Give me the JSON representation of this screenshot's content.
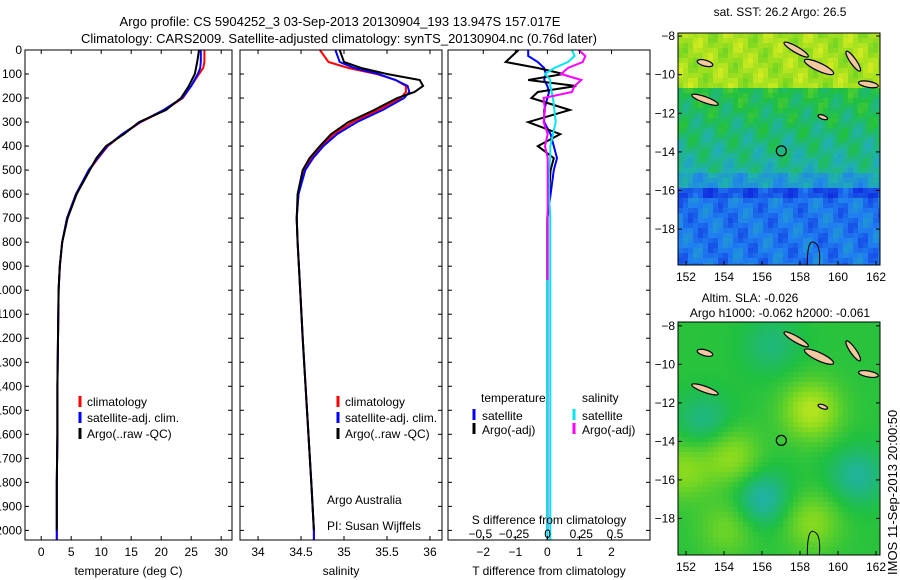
{
  "header": {
    "title_line1": "Argo profile: CS 5904252_3 03-Sep-2013 20130904_193 13.947S 157.017E",
    "title_line2": "Climatology: CARS2009. Satellite-adjusted climatology: synTS_20130904.nc (0.76d later)"
  },
  "side_stamp": "IMOS 11-Sep-2013 20:00:50",
  "credits": {
    "line1": "Argo Australia",
    "line2": "PI: Susan Wijffels"
  },
  "colors": {
    "climatology": "#ff0000",
    "satellite": "#0000ff",
    "argo": "#000000",
    "sal_satellite": "#00e5ee",
    "sal_argo": "#ff00ff",
    "land": "#f2c8a0"
  },
  "chart_data": [
    {
      "type": "line",
      "id": "temperature",
      "xlabel": "temperature (deg C)",
      "ylabel": "",
      "xlim": [
        -2.7,
        31.8
      ],
      "ylim": [
        0,
        2040
      ],
      "xticks": [
        0,
        5,
        10,
        15,
        20,
        25,
        30
      ],
      "yticks": [
        0,
        100,
        200,
        300,
        400,
        500,
        600,
        700,
        800,
        900,
        1000,
        1100,
        1200,
        1300,
        1400,
        1500,
        1600,
        1700,
        1800,
        1900,
        2000
      ],
      "depth": [
        0,
        50,
        75,
        100,
        150,
        200,
        250,
        300,
        350,
        400,
        450,
        500,
        600,
        700,
        800,
        900,
        1000,
        1200,
        1400,
        1600,
        1800,
        2000,
        2040
      ],
      "legend": [
        "climatology",
        "satellite-adj. clim.",
        "Argo(..raw -QC)"
      ],
      "series": [
        {
          "name": "climatology",
          "color": "#ff0000",
          "values": [
            27.2,
            27.2,
            27,
            26.3,
            25,
            23.6,
            20.6,
            16.6,
            13.6,
            11.1,
            9.5,
            8,
            5.8,
            4.3,
            3.5,
            3.1,
            2.9,
            2.8,
            2.7,
            2.7,
            2.6,
            2.6,
            2.6
          ]
        },
        {
          "name": "satellite-adj. clim.",
          "color": "#0000ff",
          "values": [
            26.6,
            26.6,
            26.5,
            26.1,
            25,
            23.5,
            20.4,
            16.5,
            13.5,
            11,
            9.4,
            7.9,
            5.8,
            4.3,
            3.5,
            3.1,
            2.9,
            2.8,
            2.7,
            2.7,
            2.6,
            2.6,
            2.6
          ]
        },
        {
          "name": "Argo(..raw -QC)",
          "color": "#000000",
          "values": [
            26.3,
            26,
            25.8,
            25.6,
            24.6,
            23.3,
            20.8,
            16.3,
            13.8,
            10.8,
            9.2,
            8.1,
            5.9,
            4.4,
            3.5,
            3.1,
            2.9,
            2.8,
            2.7,
            2.7,
            2.6,
            2.6,
            null
          ]
        }
      ]
    },
    {
      "type": "line",
      "id": "salinity",
      "xlabel": "salinity",
      "xlim": [
        33.79,
        36.14
      ],
      "ylim": [
        0,
        2040
      ],
      "xticks": [
        34,
        34.5,
        35,
        35.5,
        36
      ],
      "depth": [
        0,
        50,
        75,
        100,
        125,
        150,
        175,
        200,
        250,
        300,
        350,
        400,
        450,
        500,
        600,
        700,
        800,
        1000,
        1200,
        1500,
        1800,
        2000,
        2040
      ],
      "legend": [
        "climatology",
        "satellite-adj. clim.",
        "Argo(..raw -QC)"
      ],
      "series": [
        {
          "name": "climatology",
          "color": "#ff0000",
          "values": [
            34.72,
            34.82,
            35.05,
            35.38,
            35.6,
            35.72,
            35.72,
            35.66,
            35.4,
            35.1,
            34.88,
            34.74,
            34.62,
            34.54,
            34.47,
            34.45,
            34.46,
            34.49,
            34.52,
            34.57,
            34.62,
            34.65,
            34.65
          ]
        },
        {
          "name": "satellite-adj. clim.",
          "color": "#0000ff",
          "values": [
            34.9,
            34.95,
            35.12,
            35.4,
            35.6,
            35.74,
            35.76,
            35.7,
            35.45,
            35.15,
            34.92,
            34.76,
            34.64,
            34.55,
            34.47,
            34.45,
            34.46,
            34.49,
            34.52,
            34.57,
            34.62,
            34.65,
            34.65
          ]
        },
        {
          "name": "Argo(..raw -QC)",
          "color": "#000000",
          "values": [
            34.95,
            35.0,
            35.2,
            35.5,
            35.88,
            35.92,
            35.82,
            35.62,
            35.35,
            35.05,
            34.85,
            34.72,
            34.6,
            34.52,
            34.46,
            34.45,
            34.46,
            34.49,
            34.52,
            34.57,
            34.62,
            34.65,
            null
          ]
        }
      ]
    },
    {
      "type": "line",
      "id": "difference",
      "xlabel": "T difference from climatology",
      "xlabel2": "S difference from climatology",
      "xlim": [
        -3.1,
        3.2
      ],
      "xlim2": [
        -0.74,
        0.76
      ],
      "ylim": [
        0,
        2040
      ],
      "xticks": [
        -2,
        -1,
        0,
        1,
        2
      ],
      "xticks2": [
        -0.5,
        -0.25,
        0,
        0.25,
        0.5
      ],
      "legend_headers": [
        "temperature",
        "salinity"
      ],
      "legend": [
        "satellite",
        "Argo(-adj)",
        "satellite",
        "Argo(-adj)"
      ],
      "depth": [
        0,
        25,
        50,
        75,
        100,
        125,
        150,
        175,
        200,
        250,
        300,
        350,
        400,
        450,
        500,
        600,
        700,
        800,
        1000,
        1500,
        2000,
        2040
      ],
      "series": [
        {
          "name": "T satellite",
          "axis": "T",
          "color": "#0000ff",
          "values": [
            -0.6,
            -0.6,
            -0.3,
            -0.1,
            -0.05,
            -0.1,
            0,
            0.05,
            0,
            -0.1,
            -0.1,
            0.1,
            0.2,
            0.3,
            0.2,
            0.1,
            0,
            0,
            0,
            0,
            0,
            0
          ]
        },
        {
          "name": "T Argo(-adj)",
          "axis": "T",
          "color": "#000000",
          "values": [
            -0.9,
            -1.1,
            -1.3,
            -0.3,
            0.5,
            -0.6,
            0.9,
            -0.3,
            -0.5,
            0.7,
            -0.6,
            0.4,
            -0.3,
            0.2,
            0.1,
            0.05,
            0,
            0,
            0,
            0,
            0,
            null
          ]
        },
        {
          "name": "S satellite",
          "axis": "S",
          "color": "#00e5ee",
          "values": [
            0.18,
            0.2,
            0.15,
            0.05,
            -0.02,
            0.02,
            0.02,
            0.03,
            0.04,
            0.05,
            0.06,
            0.04,
            0.02,
            0.02,
            0.01,
            0.01,
            0.02,
            0.02,
            0.02,
            0.02,
            0.02,
            0.02
          ]
        },
        {
          "name": "S Argo(-adj)",
          "axis": "S",
          "color": "#ff00ff",
          "values": [
            0.23,
            0.28,
            0.26,
            0.15,
            0.1,
            0.25,
            0.2,
            0.18,
            -0.03,
            -0.02,
            -0.03,
            0.0,
            -0.02,
            0.0,
            0.0,
            0.0,
            0.0,
            0.0,
            0.0,
            0.0,
            0.0,
            null
          ]
        }
      ]
    },
    {
      "type": "heatmap",
      "id": "sst-map",
      "title": "sat. SST: 26.2 Argo: 26.5",
      "xlim": [
        151.58,
        162.21
      ],
      "ylim": [
        -19.86,
        -7.84
      ],
      "xticks": [
        152,
        154,
        156,
        158,
        160,
        162
      ],
      "yticks": [
        -8,
        -10,
        -12,
        -14,
        -16,
        -18
      ],
      "profile_location": [
        157.017,
        -13.947
      ],
      "palette": [
        "#1030e0",
        "#2080f0",
        "#20b0b0",
        "#20c040",
        "#80d820",
        "#d8ec20"
      ]
    },
    {
      "type": "heatmap",
      "id": "sla-map",
      "title": "Altim. SLA: -0.026",
      "subtitle": "Argo h1000: -0.062 h2000: -0.061",
      "xlim": [
        151.58,
        162.21
      ],
      "ylim": [
        -19.9,
        -7.8
      ],
      "xticks": [
        152,
        154,
        156,
        158,
        160,
        162
      ],
      "yticks": [
        -8,
        -10,
        -12,
        -14,
        -16,
        -18
      ],
      "profile_location": [
        157.017,
        -13.947
      ],
      "palette": [
        "#1030e0",
        "#2080f0",
        "#20b0b0",
        "#20c040",
        "#80d820",
        "#d8ec20"
      ]
    }
  ]
}
